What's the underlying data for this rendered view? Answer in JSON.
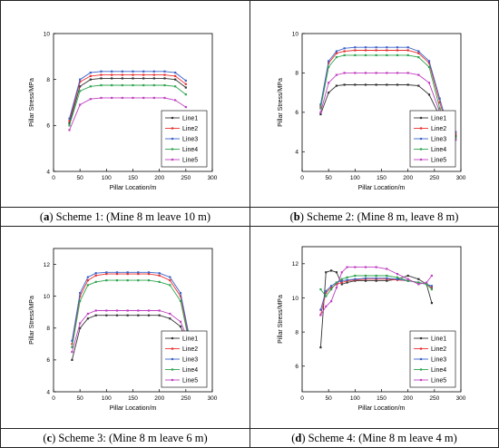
{
  "panels": [
    {
      "caption": {
        "letter": "a",
        "text": ") Scheme 1: (Mine 8 m leave 10 m)"
      },
      "chart_data": {
        "type": "line",
        "xlabel": "Pillar Location/m",
        "ylabel": "Pillar Stress/MPa",
        "xlim": [
          0,
          300
        ],
        "ylim": [
          4,
          10
        ],
        "xticks": [
          0,
          50,
          100,
          150,
          200,
          250,
          300
        ],
        "yticks": [
          4,
          6,
          8,
          10
        ],
        "legend": "bottom-right",
        "x": [
          30,
          50,
          70,
          90,
          110,
          130,
          150,
          170,
          190,
          210,
          230,
          250
        ],
        "series": [
          {
            "name": "Line1",
            "color": "#333333",
            "values": [
              6.1,
              7.7,
              8.0,
              8.05,
              8.05,
              8.05,
              8.05,
              8.05,
              8.05,
              8.05,
              8.0,
              7.65
            ]
          },
          {
            "name": "Line2",
            "color": "#e8312f",
            "values": [
              6.2,
              7.9,
              8.15,
              8.2,
              8.2,
              8.2,
              8.2,
              8.2,
              8.2,
              8.2,
              8.15,
              7.8
            ]
          },
          {
            "name": "Line3",
            "color": "#3a62c9",
            "values": [
              6.3,
              8.0,
              8.3,
              8.35,
              8.35,
              8.35,
              8.35,
              8.35,
              8.35,
              8.35,
              8.3,
              7.95
            ]
          },
          {
            "name": "Line4",
            "color": "#2ea44f",
            "values": [
              6.0,
              7.5,
              7.7,
              7.75,
              7.75,
              7.75,
              7.75,
              7.75,
              7.75,
              7.75,
              7.7,
              7.35
            ]
          },
          {
            "name": "Line5",
            "color": "#c040c0",
            "values": [
              5.8,
              6.9,
              7.15,
              7.2,
              7.2,
              7.2,
              7.2,
              7.2,
              7.2,
              7.2,
              7.1,
              6.8
            ]
          }
        ]
      }
    },
    {
      "caption": {
        "letter": "b",
        "text": ") Scheme 2: (Mine 8 m, leave 8 m)"
      },
      "chart_data": {
        "type": "line",
        "xlabel": "Pillar Location/m",
        "ylabel": "Pillar Stress/MPa",
        "xlim": [
          0,
          300
        ],
        "ylim": [
          3,
          10
        ],
        "xticks": [
          0,
          50,
          100,
          150,
          200,
          250,
          300
        ],
        "yticks": [
          4,
          6,
          8,
          10
        ],
        "legend": "bottom-right",
        "x": [
          35,
          50,
          65,
          80,
          100,
          120,
          140,
          160,
          180,
          200,
          220,
          240,
          260,
          275,
          290
        ],
        "series": [
          {
            "name": "Line1",
            "color": "#333333",
            "values": [
              5.9,
              7.0,
              7.35,
              7.4,
              7.4,
              7.4,
              7.4,
              7.4,
              7.4,
              7.4,
              7.35,
              6.9,
              5.8,
              5.0,
              4.8
            ]
          },
          {
            "name": "Line2",
            "color": "#e8312f",
            "values": [
              6.3,
              8.5,
              9.0,
              9.1,
              9.15,
              9.15,
              9.15,
              9.15,
              9.15,
              9.15,
              9.0,
              8.5,
              6.5,
              5.2,
              4.9
            ]
          },
          {
            "name": "Line3",
            "color": "#3a62c9",
            "values": [
              6.4,
              8.6,
              9.1,
              9.25,
              9.3,
              9.3,
              9.3,
              9.3,
              9.3,
              9.3,
              9.1,
              8.6,
              6.7,
              5.3,
              5.0
            ]
          },
          {
            "name": "Line4",
            "color": "#2ea44f",
            "values": [
              6.2,
              8.3,
              8.8,
              8.9,
              8.9,
              8.9,
              8.9,
              8.9,
              8.9,
              8.9,
              8.8,
              8.3,
              6.2,
              5.0,
              4.7
            ]
          },
          {
            "name": "Line5",
            "color": "#c040c0",
            "values": [
              6.0,
              7.5,
              7.9,
              8.0,
              8.0,
              8.0,
              8.0,
              8.0,
              8.0,
              8.0,
              7.9,
              7.5,
              6.0,
              4.9,
              4.6
            ]
          }
        ]
      }
    },
    {
      "caption": {
        "letter": "c",
        "text": ") Scheme 3: (Mine 8 m leave 6 m)"
      },
      "chart_data": {
        "type": "line",
        "xlabel": "Pillar Location/m",
        "ylabel": "Pillar Stress/MPa",
        "xlim": [
          0,
          300
        ],
        "ylim": [
          4,
          13
        ],
        "xticks": [
          0,
          50,
          100,
          150,
          200,
          250,
          300
        ],
        "yticks": [
          4,
          6,
          8,
          10,
          12
        ],
        "legend": "bottom-right",
        "x": [
          35,
          50,
          65,
          80,
          100,
          120,
          140,
          160,
          180,
          200,
          220,
          240,
          255,
          270
        ],
        "series": [
          {
            "name": "Line1",
            "color": "#333333",
            "values": [
              6.0,
              8.0,
              8.6,
              8.8,
              8.8,
              8.8,
              8.8,
              8.8,
              8.8,
              8.8,
              8.6,
              8.1,
              7.0,
              5.1
            ]
          },
          {
            "name": "Line2",
            "color": "#e8312f",
            "values": [
              7.0,
              10.0,
              11.0,
              11.3,
              11.4,
              11.4,
              11.4,
              11.4,
              11.4,
              11.3,
              11.0,
              10.0,
              7.5,
              5.2
            ]
          },
          {
            "name": "Line3",
            "color": "#3a62c9",
            "values": [
              7.2,
              10.2,
              11.2,
              11.45,
              11.5,
              11.5,
              11.5,
              11.5,
              11.5,
              11.45,
              11.2,
              10.2,
              7.7,
              5.3
            ]
          },
          {
            "name": "Line4",
            "color": "#2ea44f",
            "values": [
              6.8,
              9.7,
              10.7,
              10.9,
              11.0,
              11.0,
              11.0,
              11.0,
              11.0,
              10.9,
              10.7,
              9.7,
              7.3,
              5.0
            ]
          },
          {
            "name": "Line5",
            "color": "#c040c0",
            "values": [
              6.5,
              8.3,
              8.9,
              9.1,
              9.1,
              9.1,
              9.1,
              9.1,
              9.1,
              9.1,
              8.9,
              8.4,
              7.2,
              4.9
            ]
          }
        ]
      }
    },
    {
      "caption": {
        "letter": "d",
        "text": ") Scheme 4: (Mine 8 m leave 4 m)"
      },
      "chart_data": {
        "type": "line",
        "xlabel": "Pillar Location/m",
        "ylabel": "Pillar Stress/MPa",
        "xlim": [
          0,
          300
        ],
        "ylim": [
          4.5,
          13
        ],
        "xticks": [
          0,
          50,
          100,
          150,
          200,
          250,
          300
        ],
        "yticks": [
          6,
          8,
          10,
          12
        ],
        "legend": "bottom-right",
        "x": [
          35,
          45,
          55,
          65,
          75,
          85,
          100,
          120,
          140,
          160,
          180,
          200,
          220,
          235,
          245
        ],
        "series": [
          {
            "name": "Line1",
            "color": "#333333",
            "values": [
              7.1,
              11.5,
              11.6,
              11.5,
              10.8,
              10.9,
              11.0,
              11.0,
              11.0,
              11.0,
              11.1,
              11.3,
              11.1,
              10.8,
              9.7
            ]
          },
          {
            "name": "Line2",
            "color": "#e8312f",
            "values": [
              9.0,
              10.3,
              10.6,
              10.8,
              10.9,
              11.0,
              11.05,
              11.1,
              11.1,
              11.1,
              11.05,
              11.0,
              10.9,
              10.8,
              10.6
            ]
          },
          {
            "name": "Line3",
            "color": "#3a62c9",
            "values": [
              9.3,
              10.4,
              10.7,
              10.9,
              11.0,
              11.05,
              11.1,
              11.15,
              11.15,
              11.15,
              11.1,
              11.0,
              10.9,
              10.8,
              10.7
            ]
          },
          {
            "name": "Line4",
            "color": "#2ea44f",
            "values": [
              10.5,
              10.1,
              10.5,
              10.9,
              11.1,
              11.2,
              11.3,
              11.3,
              11.3,
              11.3,
              11.2,
              11.0,
              10.9,
              10.8,
              10.5
            ]
          },
          {
            "name": "Line5",
            "color": "#c040c0",
            "values": [
              9.0,
              9.5,
              9.8,
              10.6,
              11.5,
              11.8,
              11.8,
              11.8,
              11.8,
              11.7,
              11.4,
              11.1,
              10.8,
              10.9,
              11.3
            ]
          }
        ]
      }
    }
  ]
}
